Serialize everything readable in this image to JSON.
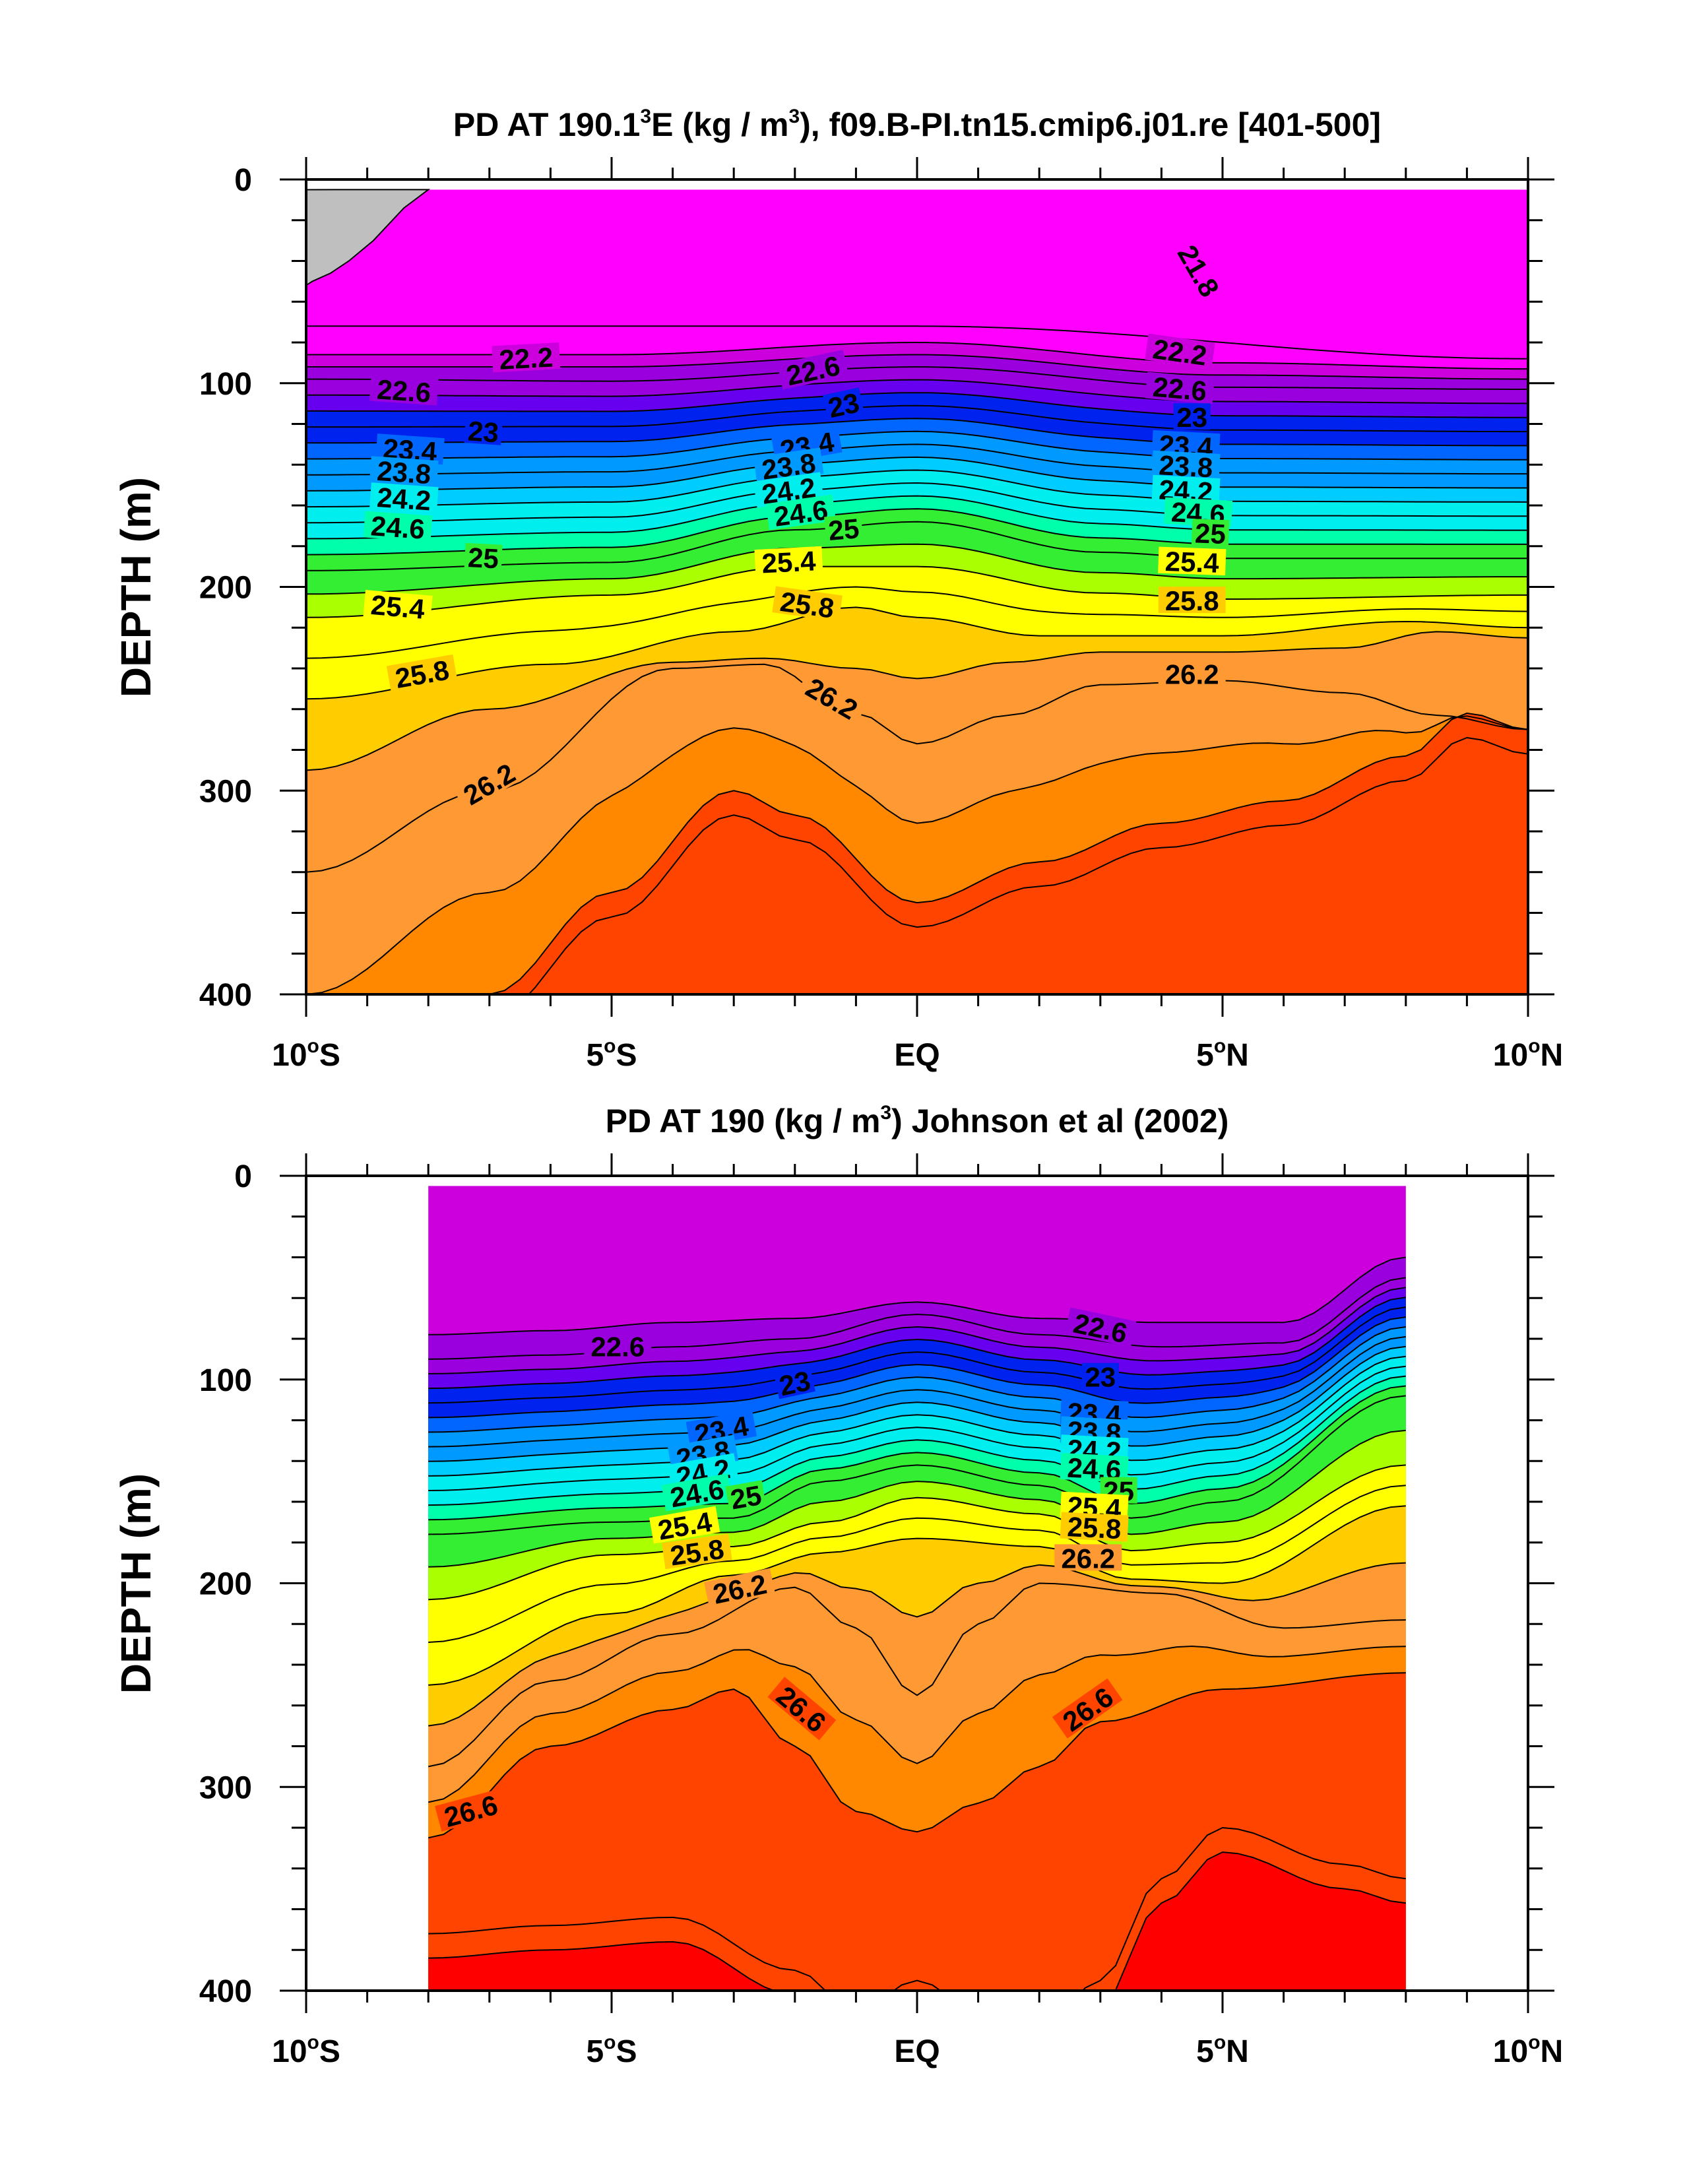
{
  "colors": {
    "scale": [
      "#ff00ff",
      "#cc00dd",
      "#9900dd",
      "#6600ee",
      "#0022ee",
      "#0066ff",
      "#0099ff",
      "#00ccff",
      "#00eeee",
      "#00ffaa",
      "#33ee33",
      "#aaff00",
      "#ffff00",
      "#ffcc00",
      "#ff9933",
      "#ff8800",
      "#ff4400",
      "#ff0000",
      "#dd0000",
      "#c00000"
    ],
    "land": "#bfbfbf",
    "line": "#000000"
  },
  "chart_data": [
    {
      "type": "contour",
      "title_pre": "PD AT 190.1",
      "title_mid": "E (kg / m",
      "title_sup": "3",
      "title_post": "), f09.B-PI.tn15.cmip6.j01.re [401-500]",
      "ylabel": "DEPTH (m)",
      "xlabel": "",
      "xlim": [
        -10,
        10
      ],
      "ylim": [
        400,
        0
      ],
      "x_ticks": [
        {
          "value": -10,
          "num": "10",
          "sup": "o",
          "hemi": "S"
        },
        {
          "value": -5,
          "num": "5",
          "sup": "o",
          "hemi": "S"
        },
        {
          "value": 0,
          "num": "EQ",
          "sup": "",
          "hemi": ""
        },
        {
          "value": 5,
          "num": "5",
          "sup": "o",
          "hemi": "N"
        },
        {
          "value": 10,
          "num": "10",
          "sup": "o",
          "hemi": "N"
        }
      ],
      "y_ticks": [
        0,
        100,
        200,
        300,
        400
      ],
      "data_xlim": [
        -10,
        10
      ],
      "surface_depth": 5,
      "contour_interval": 0.2,
      "isopycnals": [
        {
          "level": 22.0,
          "x": [
            -10,
            0,
            10
          ],
          "d": [
            72,
            72,
            88
          ]
        },
        {
          "level": 22.2,
          "x": [
            -10,
            -5,
            0,
            5,
            10
          ],
          "d": [
            86,
            86,
            80,
            90,
            93
          ]
        },
        {
          "level": 22.4,
          "x": [
            -10,
            -5,
            0,
            5,
            10
          ],
          "d": [
            92,
            92,
            86,
            96,
            98
          ]
        },
        {
          "level": 22.6,
          "x": [
            -10,
            -5,
            0,
            5,
            10
          ],
          "d": [
            98,
            99,
            92,
            102,
            103
          ]
        },
        {
          "level": 25.0,
          "x": [
            -10,
            -5,
            -2,
            0,
            3,
            5,
            10
          ],
          "d": [
            192,
            188,
            172,
            168,
            183,
            186,
            186
          ]
        },
        {
          "level": 25.4,
          "x": [
            -10,
            -5,
            -2,
            0,
            3,
            5,
            10
          ],
          "d": [
            215,
            204,
            190,
            190,
            203,
            206,
            204
          ]
        },
        {
          "level": 25.8,
          "x": [
            -10,
            -6,
            -3,
            -1,
            0,
            2,
            5,
            8,
            10
          ],
          "d": [
            255,
            238,
            222,
            210,
            215,
            224,
            224,
            217,
            220
          ]
        },
        {
          "level": 26.0,
          "x": [
            -10,
            -7,
            -4,
            -2.5,
            -1,
            0,
            1.5,
            3,
            5,
            7,
            8.5,
            10
          ],
          "d": [
            290,
            260,
            237,
            235,
            240,
            245,
            237,
            232,
            232,
            230,
            222,
            225
          ]
        },
        {
          "level": 26.2,
          "x": [
            -10,
            -7,
            -4,
            -2.5,
            -1,
            0,
            1.5,
            3,
            5,
            7,
            8.5,
            10
          ],
          "d": [
            340,
            300,
            240,
            238,
            262,
            277,
            263,
            248,
            246,
            252,
            263,
            270
          ]
        },
        {
          "level": 26.6,
          "x": [
            -10,
            -7,
            -5,
            -3,
            -2,
            0,
            2,
            4,
            6,
            8,
            9,
            10
          ],
          "d": [
            460,
            400,
            350,
            300,
            312,
            355,
            335,
            316,
            305,
            283,
            262,
            270
          ]
        }
      ],
      "labels": [
        {
          "text": "21.8",
          "x": 4.6,
          "d": 45,
          "angle": 60
        },
        {
          "text": "22.2",
          "x": -6.4,
          "d": 88,
          "angle": -3
        },
        {
          "text": "22.2",
          "x": 4.3,
          "d": 85,
          "angle": 8
        },
        {
          "text": "22.6",
          "x": -8.4,
          "d": 104,
          "angle": 4
        },
        {
          "text": "22.6",
          "x": -1.7,
          "d": 94,
          "angle": -12
        },
        {
          "text": "22.6",
          "x": 4.3,
          "d": 103,
          "angle": 5
        },
        {
          "text": "23",
          "x": -7.1,
          "d": 124,
          "angle": 4
        },
        {
          "text": "23",
          "x": -1.2,
          "d": 111,
          "angle": -12
        },
        {
          "text": "23",
          "x": 4.5,
          "d": 117,
          "angle": 0
        },
        {
          "text": "23.4",
          "x": -8.3,
          "d": 133,
          "angle": 4
        },
        {
          "text": "23.4",
          "x": -1.8,
          "d": 131,
          "angle": -10
        },
        {
          "text": "23.4",
          "x": 4.4,
          "d": 131,
          "angle": 3
        },
        {
          "text": "23.8",
          "x": -8.4,
          "d": 144,
          "angle": 4
        },
        {
          "text": "23.8",
          "x": -2.1,
          "d": 141,
          "angle": -8
        },
        {
          "text": "23.8",
          "x": 4.4,
          "d": 141,
          "angle": 3
        },
        {
          "text": "24.2",
          "x": -8.4,
          "d": 157,
          "angle": 4
        },
        {
          "text": "24.2",
          "x": -2.1,
          "d": 153,
          "angle": -8
        },
        {
          "text": "24.2",
          "x": 4.4,
          "d": 153,
          "angle": 3
        },
        {
          "text": "24.6",
          "x": -8.5,
          "d": 171,
          "angle": 4
        },
        {
          "text": "24.6",
          "x": -1.9,
          "d": 164,
          "angle": -8
        },
        {
          "text": "24.6",
          "x": 4.6,
          "d": 164,
          "angle": 3
        },
        {
          "text": "25",
          "x": -7.1,
          "d": 186,
          "angle": 3
        },
        {
          "text": "25",
          "x": -1.2,
          "d": 172,
          "angle": -5
        },
        {
          "text": "25",
          "x": 4.8,
          "d": 174,
          "angle": 2
        },
        {
          "text": "25.4",
          "x": -8.5,
          "d": 210,
          "angle": 5
        },
        {
          "text": "25.4",
          "x": -2.1,
          "d": 188,
          "angle": -3
        },
        {
          "text": "25.4",
          "x": 4.5,
          "d": 188,
          "angle": 2
        },
        {
          "text": "25.8",
          "x": -8.1,
          "d": 243,
          "angle": -10
        },
        {
          "text": "25.8",
          "x": -1.8,
          "d": 209,
          "angle": 8
        },
        {
          "text": "25.8",
          "x": 4.5,
          "d": 207,
          "angle": 0
        },
        {
          "text": "26.2",
          "x": -7.0,
          "d": 297,
          "angle": -30
        },
        {
          "text": "26.2",
          "x": -1.4,
          "d": 255,
          "angle": 30
        },
        {
          "text": "26.2",
          "x": 4.5,
          "d": 243,
          "angle": 0
        }
      ]
    },
    {
      "type": "contour",
      "title_pre": "PD AT 190 (kg / m",
      "title_mid": "",
      "title_sup": "3",
      "title_post": ") Johnson et al (2002)",
      "ylabel": "DEPTH (m)",
      "xlabel": "",
      "xlim": [
        -10,
        10
      ],
      "ylim": [
        400,
        0
      ],
      "x_ticks": [
        {
          "value": -10,
          "num": "10",
          "sup": "o",
          "hemi": "S"
        },
        {
          "value": -5,
          "num": "5",
          "sup": "o",
          "hemi": "S"
        },
        {
          "value": 0,
          "num": "EQ",
          "sup": "",
          "hemi": ""
        },
        {
          "value": 5,
          "num": "5",
          "sup": "o",
          "hemi": "N"
        },
        {
          "value": 10,
          "num": "10",
          "sup": "o",
          "hemi": "N"
        }
      ],
      "y_ticks": [
        0,
        100,
        200,
        300,
        400
      ],
      "data_xlim": [
        -8,
        8
      ],
      "surface_depth": 5,
      "contour_interval": 0.2,
      "isopycnals": [
        {
          "level": 22.4,
          "x": [
            -8,
            -6,
            -4,
            -2,
            0,
            2,
            4,
            6,
            8
          ],
          "d": [
            78,
            76,
            72,
            70,
            62,
            70,
            72,
            72,
            40
          ]
        },
        {
          "level": 22.6,
          "x": [
            -8,
            -6,
            -4,
            -2,
            0,
            2,
            4,
            6,
            8
          ],
          "d": [
            90,
            88,
            84,
            80,
            68,
            78,
            84,
            82,
            50
          ]
        },
        {
          "level": 25.0,
          "x": [
            -8,
            -5,
            -3,
            -1.5,
            0,
            2,
            3.5,
            5,
            8
          ],
          "d": [
            176,
            170,
            168,
            150,
            142,
            152,
            168,
            160,
            108
          ]
        },
        {
          "level": 25.4,
          "x": [
            -8,
            -5,
            -3,
            -1.5,
            0,
            2,
            3.5,
            5,
            8
          ],
          "d": [
            208,
            186,
            182,
            170,
            158,
            166,
            184,
            180,
            142
          ]
        },
        {
          "level": 25.8,
          "x": [
            -8,
            -5,
            -3,
            -1.5,
            0,
            2,
            3.5,
            5,
            8
          ],
          "d": [
            250,
            215,
            196,
            185,
            178,
            182,
            198,
            200,
            162
          ]
        },
        {
          "level": 26.2,
          "x": [
            -8,
            -6,
            -4,
            -2,
            -1,
            0,
            1,
            2,
            4,
            6,
            8
          ],
          "d": [
            290,
            248,
            225,
            202,
            222,
            255,
            220,
            200,
            205,
            222,
            218
          ]
        },
        {
          "level": 26.6,
          "x": [
            -8,
            -6,
            -4,
            -3,
            -2,
            -1,
            0,
            1,
            2,
            3,
            5,
            8
          ],
          "d": [
            325,
            280,
            262,
            252,
            280,
            312,
            322,
            308,
            290,
            268,
            252,
            244
          ]
        },
        {
          "level": 26.8,
          "x": [
            -8,
            -6,
            -4,
            -2,
            -1,
            0,
            1,
            2,
            3,
            4,
            5,
            7,
            8
          ],
          "d": [
            372,
            368,
            364,
            390,
            410,
            395,
            410,
            420,
            395,
            345,
            320,
            338,
            345
          ]
        }
      ],
      "labels": [
        {
          "text": "22.6",
          "x": -4.9,
          "d": 84,
          "angle": 0
        },
        {
          "text": "22.6",
          "x": 3.0,
          "d": 75,
          "angle": 12
        },
        {
          "text": "23",
          "x": -2.0,
          "d": 102,
          "angle": -12
        },
        {
          "text": "23",
          "x": 3.0,
          "d": 99,
          "angle": 0
        },
        {
          "text": "23.4",
          "x": -3.2,
          "d": 125,
          "angle": -10
        },
        {
          "text": "23.4",
          "x": 2.9,
          "d": 117,
          "angle": 3
        },
        {
          "text": "23.8",
          "x": -3.5,
          "d": 137,
          "angle": -10
        },
        {
          "text": "23.8",
          "x": 2.9,
          "d": 126,
          "angle": 3
        },
        {
          "text": "24.2",
          "x": -3.5,
          "d": 146,
          "angle": -10
        },
        {
          "text": "24.2",
          "x": 2.9,
          "d": 135,
          "angle": 3
        },
        {
          "text": "24.6",
          "x": -3.6,
          "d": 156,
          "angle": -10
        },
        {
          "text": "24.6",
          "x": 2.9,
          "d": 144,
          "angle": 3
        },
        {
          "text": "25",
          "x": -2.8,
          "d": 158,
          "angle": -10
        },
        {
          "text": "25",
          "x": 3.3,
          "d": 155,
          "angle": 0
        },
        {
          "text": "25.4",
          "x": -3.8,
          "d": 172,
          "angle": -10
        },
        {
          "text": "25.4",
          "x": 2.9,
          "d": 163,
          "angle": 3
        },
        {
          "text": "25.8",
          "x": -3.6,
          "d": 185,
          "angle": -8
        },
        {
          "text": "25.8",
          "x": 2.9,
          "d": 173,
          "angle": 3
        },
        {
          "text": "26.2",
          "x": -2.9,
          "d": 203,
          "angle": -12
        },
        {
          "text": "26.2",
          "x": 2.8,
          "d": 188,
          "angle": 0
        },
        {
          "text": "26.6",
          "x": -1.9,
          "d": 262,
          "angle": 40
        },
        {
          "text": "26.6",
          "x": 2.8,
          "d": 262,
          "angle": -35
        },
        {
          "text": "26.6",
          "x": -7.3,
          "d": 312,
          "angle": -15
        }
      ]
    }
  ]
}
